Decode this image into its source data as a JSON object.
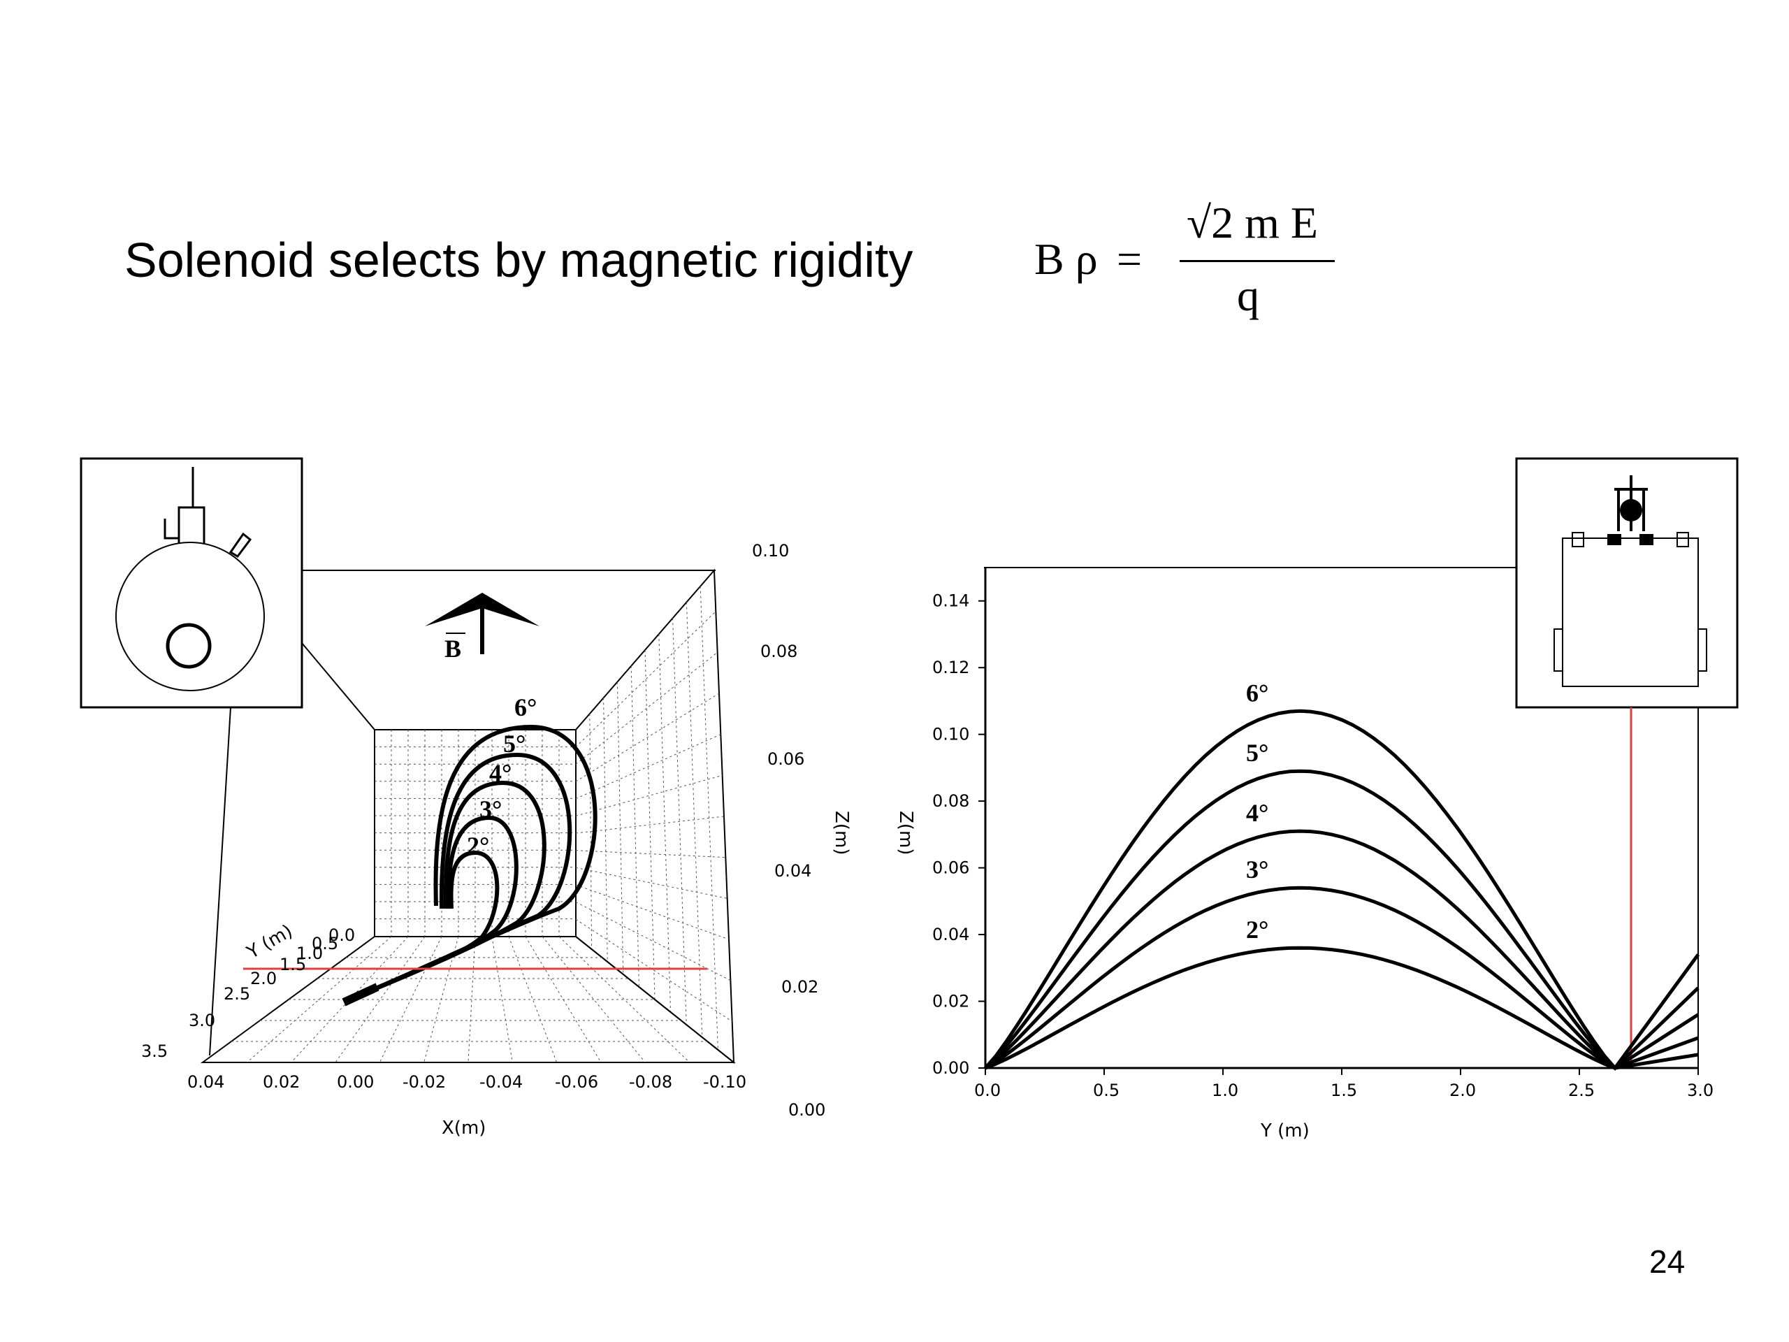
{
  "slide": {
    "title": "Solenoid selects by magnetic rigidity",
    "page_number": "24",
    "formula": {
      "lhs": "B ρ",
      "equals": "=",
      "numerator": "√2 m E",
      "denominator": "q"
    }
  },
  "left_figure": {
    "field_label": "B",
    "angle_labels": [
      "6°",
      "5°",
      "4°",
      "3°",
      "2°"
    ],
    "x_axis_label": "X(m)",
    "x_ticks": [
      "0.04",
      "0.02",
      "0.00",
      "-0.02",
      "-0.04",
      "-0.06",
      "-0.08",
      "-0.10"
    ],
    "y_axis_label": "Y (m)",
    "y_ticks": [
      "3.5",
      "3.0",
      "2.5",
      "2.0",
      "1.5",
      "1.0",
      "0.5",
      "0.0"
    ],
    "z_axis_label": "Z(m)",
    "z_ticks": [
      "0.10",
      "0.08",
      "0.06",
      "0.04",
      "0.02",
      "0.00"
    ]
  },
  "chart_data": {
    "type": "line",
    "xlabel": "Y (m)",
    "ylabel": "Z(m)",
    "xlim": [
      0.0,
      3.0
    ],
    "ylim": [
      0.0,
      0.15
    ],
    "x_ticks": [
      "0.0",
      "0.5",
      "1.0",
      "1.5",
      "2.0",
      "2.5",
      "3.0"
    ],
    "y_ticks": [
      "0.00",
      "0.02",
      "0.04",
      "0.06",
      "0.08",
      "0.10",
      "0.12",
      "0.14"
    ],
    "marker_line_y": 2.62,
    "series": [
      {
        "name": "6°",
        "x": [
          0.0,
          1.15,
          2.65,
          3.0
        ],
        "y": [
          0.0,
          0.107,
          0.0,
          0.034
        ]
      },
      {
        "name": "5°",
        "x": [
          0.0,
          1.15,
          2.65,
          3.0
        ],
        "y": [
          0.0,
          0.089,
          0.0,
          0.024
        ]
      },
      {
        "name": "4°",
        "x": [
          0.0,
          1.15,
          2.65,
          3.0
        ],
        "y": [
          0.0,
          0.071,
          0.0,
          0.016
        ]
      },
      {
        "name": "3°",
        "x": [
          0.0,
          1.15,
          2.65,
          3.0
        ],
        "y": [
          0.0,
          0.054,
          0.0,
          0.009
        ]
      },
      {
        "name": "2°",
        "x": [
          0.0,
          1.15,
          2.65,
          3.0
        ],
        "y": [
          0.0,
          0.036,
          0.0,
          0.004
        ]
      }
    ]
  }
}
